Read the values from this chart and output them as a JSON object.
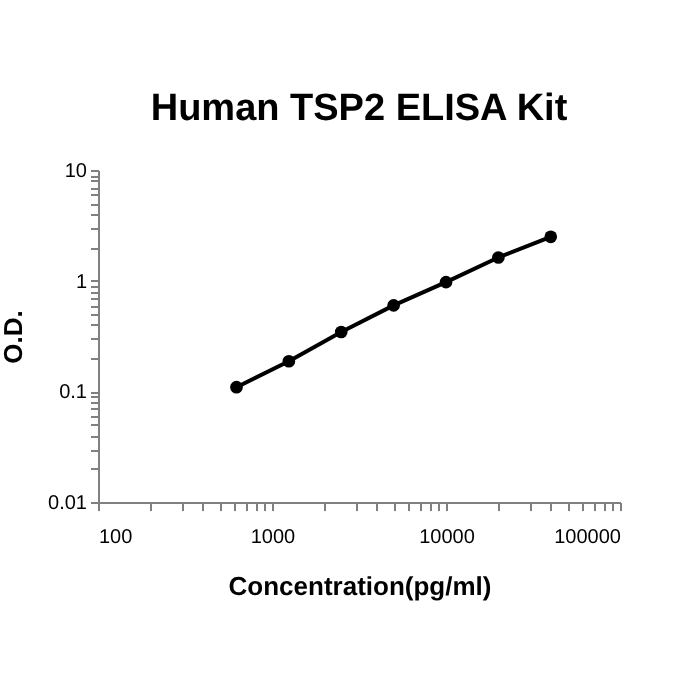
{
  "chart_data": {
    "type": "line",
    "title": "Human TSP2 ELISA Kit",
    "xlabel": "Concentration(pg/ml)",
    "ylabel": "O.D.",
    "log": "xy",
    "marker": "circle",
    "line_style": "solid",
    "grid": false,
    "legend": false,
    "x": [
      625,
      1250,
      2500,
      5000,
      10000,
      20000,
      40000
    ],
    "series": [
      {
        "color": "#000000",
        "values": [
          0.109,
          0.187,
          0.344,
          0.598,
          0.97,
          1.62,
          2.49
        ]
      }
    ],
    "xlim": [
      100,
      100000
    ],
    "ylim": [
      0.01,
      10
    ],
    "xticks": [
      100,
      {
        "value": 200,
        "label": null
      },
      {
        "value": 300,
        "label": null
      },
      {
        "value": 400,
        "label": null
      },
      {
        "value": 500,
        "label": null
      },
      {
        "value": 600,
        "label": null
      },
      {
        "value": 700,
        "label": null
      },
      {
        "value": 800,
        "label": null
      },
      {
        "value": 900,
        "label": null
      },
      1000,
      {
        "value": 2000,
        "label": null
      },
      {
        "value": 3000,
        "label": null
      },
      {
        "value": 4000,
        "label": null
      },
      {
        "value": 5000,
        "label": null
      },
      {
        "value": 6000,
        "label": null
      },
      {
        "value": 7000,
        "label": null
      },
      {
        "value": 8000,
        "label": null
      },
      {
        "value": 9000,
        "label": null
      },
      10000,
      {
        "value": 20000,
        "label": null
      },
      {
        "value": 30000,
        "label": null
      },
      {
        "value": 40000,
        "label": null
      },
      {
        "value": 50000,
        "label": null
      },
      {
        "value": 60000,
        "label": null
      },
      {
        "value": 70000,
        "label": null
      },
      {
        "value": 80000,
        "label": null
      },
      {
        "value": 90000,
        "label": null
      },
      100000
    ],
    "yticks": [
      0.01,
      {
        "value": 0.02,
        "label": null
      },
      {
        "value": 0.03,
        "label": null
      },
      {
        "value": 0.04,
        "label": null
      },
      {
        "value": 0.05,
        "label": null
      },
      {
        "value": 0.06,
        "label": null
      },
      {
        "value": 0.07,
        "label": null
      },
      {
        "value": 0.08,
        "label": null
      },
      {
        "value": 0.09,
        "label": null
      },
      0.1,
      {
        "value": 0.2,
        "label": null
      },
      {
        "value": 0.3,
        "label": null
      },
      {
        "value": 0.4,
        "label": null
      },
      {
        "value": 0.5,
        "label": null
      },
      {
        "value": 0.6,
        "label": null
      },
      {
        "value": 0.7,
        "label": null
      },
      {
        "value": 0.8,
        "label": null
      },
      {
        "value": 0.9,
        "label": null
      },
      1,
      {
        "value": 2,
        "label": null
      },
      {
        "value": 3,
        "label": null
      },
      {
        "value": 4,
        "label": null
      },
      {
        "value": 5,
        "label": null
      },
      {
        "value": 6,
        "label": null
      },
      {
        "value": 7,
        "label": null
      },
      {
        "value": 8,
        "label": null
      },
      {
        "value": 9,
        "label": null
      },
      10
    ]
  }
}
